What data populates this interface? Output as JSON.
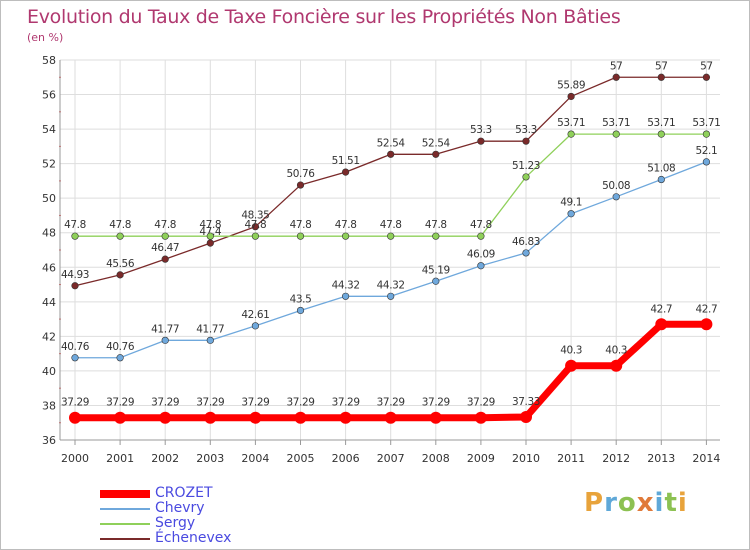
{
  "title": "Evolution du Taux de Taxe Foncière sur les Propriétés Non Bâties",
  "unit_label": "(en %)",
  "logo": "Proxiti",
  "chart_data": {
    "type": "line",
    "title": "Evolution du Taux de Taxe Foncière sur les Propriétés Non Bâties",
    "ylabel": "(en %)",
    "xlabel": "",
    "ylim": [
      36,
      58
    ],
    "yticks": [
      36,
      38,
      40,
      42,
      44,
      46,
      48,
      50,
      52,
      54,
      56,
      58
    ],
    "grid": true,
    "legend_position": "bottom-left",
    "x": [
      2000,
      2001,
      2002,
      2003,
      2004,
      2005,
      2006,
      2007,
      2008,
      2009,
      2010,
      2011,
      2012,
      2013,
      2014
    ],
    "series": [
      {
        "name": "CROZET",
        "color": "#ff0000",
        "values": [
          37.29,
          37.29,
          37.29,
          37.29,
          37.29,
          37.29,
          37.29,
          37.29,
          37.29,
          37.29,
          37.33,
          40.3,
          40.3,
          42.7,
          42.7
        ],
        "labels": [
          "37.29",
          "37.29",
          "37.29",
          "37.29",
          "37.29",
          "37.29",
          "37.29",
          "37.29",
          "37.29",
          "37.29",
          "37.33",
          "40.3",
          "40.3",
          "42.7",
          "42.7"
        ]
      },
      {
        "name": "Chevry",
        "color": "#6fa8dc",
        "values": [
          40.76,
          40.76,
          41.77,
          41.77,
          42.61,
          43.5,
          44.32,
          44.32,
          45.19,
          46.09,
          46.83,
          49.1,
          50.08,
          51.08,
          52.1
        ],
        "labels": [
          "40.76",
          "40.76",
          "41.77",
          "41.77",
          "42.61",
          "43.5",
          "44.32",
          "44.32",
          "45.19",
          "46.09",
          "46.83",
          "49.1",
          "50.08",
          "51.08",
          "52.1"
        ]
      },
      {
        "name": "Sergy",
        "color": "#8fd05a",
        "values": [
          47.8,
          47.8,
          47.8,
          47.8,
          47.8,
          47.8,
          47.8,
          47.8,
          47.8,
          47.8,
          51.23,
          53.71,
          53.71,
          53.71,
          53.71
        ],
        "labels": [
          "47.8",
          "47.8",
          "47.8",
          "47.8",
          "47.8",
          "47.8",
          "47.8",
          "47.8",
          "47.8",
          "47.8",
          "51.23",
          "53.71",
          "53.71",
          "53.71",
          "53.71"
        ]
      },
      {
        "name": "Échenevex",
        "color": "#7a2a2a",
        "values": [
          44.93,
          45.56,
          46.47,
          47.4,
          48.35,
          50.76,
          51.51,
          52.54,
          52.54,
          53.3,
          53.3,
          55.89,
          57,
          57,
          57
        ],
        "labels": [
          "44.93",
          "45.56",
          "46.47",
          "47.4",
          "48.35",
          "50.76",
          "51.51",
          "52.54",
          "52.54",
          "53.3",
          "53.3",
          "55.89",
          "57",
          "57",
          "57"
        ]
      }
    ]
  }
}
